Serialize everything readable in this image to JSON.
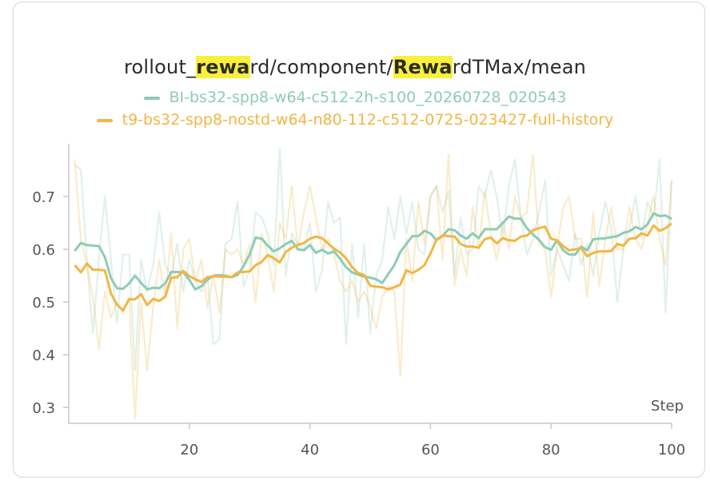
{
  "title_parts": [
    {
      "text": "rollout_",
      "hl": false
    },
    {
      "text": "rewa",
      "hl": true
    },
    {
      "text": "rd/component/",
      "hl": false
    },
    {
      "text": "Rewa",
      "hl": true
    },
    {
      "text": "rdTMax/mean",
      "hl": false
    }
  ],
  "chart_data": {
    "type": "line",
    "title": "rollout_reward/component/RewardTMax/mean",
    "xlabel": "Step",
    "ylabel": "",
    "xlim": [
      0,
      100
    ],
    "ylim": [
      0.27,
      0.8
    ],
    "xticks": [
      20,
      40,
      60,
      80,
      100
    ],
    "yticks": [
      0.3,
      0.4,
      0.5,
      0.6,
      0.7
    ],
    "series": [
      {
        "name": "BI-bs32-spp8-w64-c512-2h-s100_20260728_020543",
        "color": "#8ecbb5",
        "smoothed": [
          0.597,
          0.612,
          0.608,
          0.607,
          0.606,
          0.585,
          0.545,
          0.526,
          0.525,
          0.535,
          0.55,
          0.536,
          0.524,
          0.527,
          0.526,
          0.535,
          0.557,
          0.557,
          0.556,
          0.542,
          0.524,
          0.53,
          0.542,
          0.55,
          0.551,
          0.55,
          0.547,
          0.551,
          0.568,
          0.59,
          0.622,
          0.62,
          0.607,
          0.596,
          0.602,
          0.61,
          0.616,
          0.6,
          0.598,
          0.608,
          0.593,
          0.599,
          0.592,
          0.596,
          0.582,
          0.566,
          0.556,
          0.552,
          0.548,
          0.546,
          0.543,
          0.536,
          0.553,
          0.57,
          0.595,
          0.61,
          0.625,
          0.625,
          0.635,
          0.63,
          0.617,
          0.625,
          0.638,
          0.636,
          0.626,
          0.62,
          0.63,
          0.621,
          0.638,
          0.638,
          0.638,
          0.65,
          0.662,
          0.658,
          0.658,
          0.64,
          0.628,
          0.618,
          0.604,
          0.599,
          0.617,
          0.598,
          0.59,
          0.59,
          0.605,
          0.598,
          0.619,
          0.62,
          0.621,
          0.623,
          0.625,
          0.631,
          0.634,
          0.642,
          0.638,
          0.647,
          0.668,
          0.663,
          0.664,
          0.657
        ],
        "raw": [
          0.76,
          0.75,
          0.58,
          0.44,
          0.58,
          0.7,
          0.58,
          0.46,
          0.59,
          0.59,
          0.37,
          0.58,
          0.52,
          0.57,
          0.67,
          0.57,
          0.55,
          0.61,
          0.52,
          0.58,
          0.54,
          0.52,
          0.55,
          0.42,
          0.43,
          0.61,
          0.62,
          0.69,
          0.53,
          0.56,
          0.67,
          0.66,
          0.63,
          0.57,
          0.79,
          0.55,
          0.63,
          0.61,
          0.6,
          0.65,
          0.52,
          0.56,
          0.69,
          0.65,
          0.66,
          0.42,
          0.61,
          0.47,
          0.61,
          0.44,
          0.55,
          0.58,
          0.68,
          0.62,
          0.7,
          0.63,
          0.69,
          0.6,
          0.59,
          0.7,
          0.72,
          0.67,
          0.71,
          0.55,
          0.66,
          0.59,
          0.6,
          0.72,
          0.7,
          0.75,
          0.7,
          0.62,
          0.72,
          0.77,
          0.66,
          0.59,
          0.62,
          0.67,
          0.73,
          0.55,
          0.6,
          0.57,
          0.54,
          0.63,
          0.57,
          0.61,
          0.55,
          0.63,
          0.69,
          0.64,
          0.5,
          0.6,
          0.64,
          0.7,
          0.62,
          0.69,
          0.66,
          0.77,
          0.48,
          0.73
        ]
      },
      {
        "name": "t9-bs32-spp8-nostd-w64-n80-112-c512-0725-023427-full-history",
        "color": "#f2b643",
        "smoothed": [
          0.57,
          0.556,
          0.573,
          0.561,
          0.561,
          0.56,
          0.516,
          0.495,
          0.484,
          0.505,
          0.505,
          0.515,
          0.494,
          0.506,
          0.502,
          0.51,
          0.546,
          0.547,
          0.559,
          0.549,
          0.543,
          0.538,
          0.547,
          0.549,
          0.548,
          0.548,
          0.547,
          0.556,
          0.557,
          0.558,
          0.57,
          0.576,
          0.589,
          0.583,
          0.575,
          0.595,
          0.603,
          0.608,
          0.612,
          0.62,
          0.624,
          0.621,
          0.611,
          0.601,
          0.594,
          0.583,
          0.566,
          0.555,
          0.551,
          0.531,
          0.529,
          0.528,
          0.524,
          0.528,
          0.533,
          0.56,
          0.555,
          0.561,
          0.57,
          0.592,
          0.618,
          0.626,
          0.625,
          0.624,
          0.61,
          0.605,
          0.605,
          0.603,
          0.619,
          0.622,
          0.611,
          0.621,
          0.617,
          0.616,
          0.624,
          0.626,
          0.636,
          0.64,
          0.643,
          0.62,
          0.617,
          0.606,
          0.598,
          0.6,
          0.602,
          0.587,
          0.593,
          0.596,
          0.596,
          0.597,
          0.61,
          0.607,
          0.62,
          0.621,
          0.63,
          0.626,
          0.645,
          0.635,
          0.64,
          0.649
        ],
        "raw": [
          0.77,
          0.62,
          0.57,
          0.51,
          0.41,
          0.52,
          0.47,
          0.5,
          0.48,
          0.51,
          0.28,
          0.5,
          0.37,
          0.49,
          0.58,
          0.51,
          0.63,
          0.45,
          0.6,
          0.62,
          0.54,
          0.58,
          0.49,
          0.55,
          0.48,
          0.6,
          0.59,
          0.6,
          0.57,
          0.61,
          0.5,
          0.63,
          0.59,
          0.52,
          0.65,
          0.62,
          0.72,
          0.6,
          0.67,
          0.72,
          0.66,
          0.6,
          0.62,
          0.59,
          0.54,
          0.52,
          0.54,
          0.5,
          0.52,
          0.49,
          0.45,
          0.51,
          0.53,
          0.52,
          0.36,
          0.62,
          0.54,
          0.69,
          0.61,
          0.7,
          0.72,
          0.58,
          0.78,
          0.53,
          0.6,
          0.55,
          0.68,
          0.6,
          0.71,
          0.63,
          0.58,
          0.65,
          0.6,
          0.7,
          0.66,
          0.67,
          0.78,
          0.61,
          0.6,
          0.51,
          0.6,
          0.68,
          0.7,
          0.62,
          0.62,
          0.51,
          0.67,
          0.53,
          0.62,
          0.68,
          0.6,
          0.6,
          0.68,
          0.62,
          0.6,
          0.65,
          0.7,
          0.62,
          0.57,
          0.73
        ]
      }
    ]
  }
}
